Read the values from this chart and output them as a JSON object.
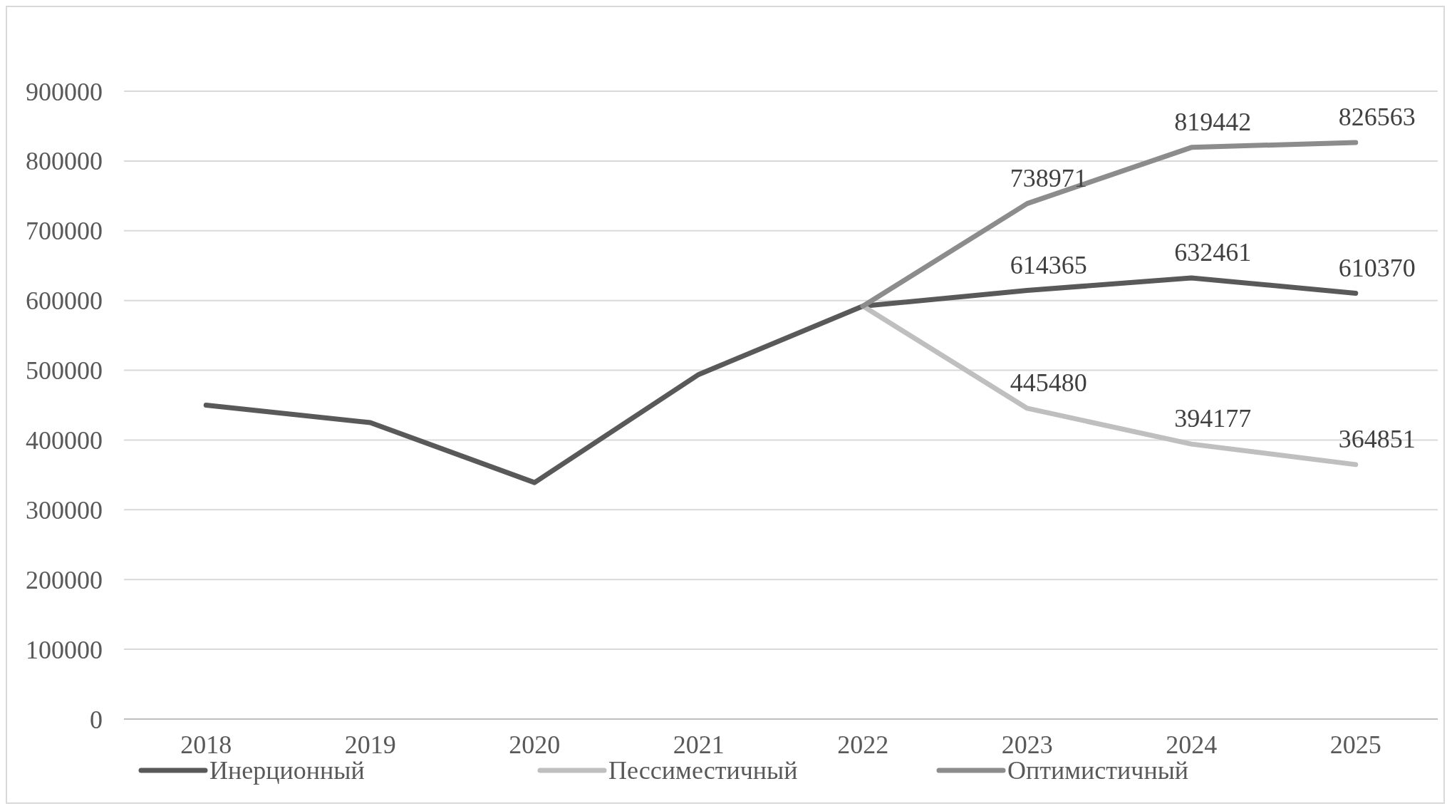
{
  "chart_data": {
    "type": "line",
    "categories": [
      "2018",
      "2019",
      "2020",
      "2021",
      "2022",
      "2023",
      "2024",
      "2025"
    ],
    "series": [
      {
        "name": "Инерционный",
        "color": "#595959",
        "values": [
          450000,
          425000,
          339000,
          494000,
          592000,
          614365,
          632461,
          610370
        ],
        "value_labels": [
          null,
          null,
          null,
          null,
          null,
          "614365",
          "632461",
          "610370"
        ]
      },
      {
        "name": "Пессиместичный",
        "color": "#bfbfbf",
        "values": [
          null,
          null,
          null,
          null,
          592000,
          445480,
          394177,
          364851
        ],
        "value_labels": [
          null,
          null,
          null,
          null,
          null,
          "445480",
          "394177",
          "364851"
        ]
      },
      {
        "name": "Оптимистичный",
        "color": "#8c8c8c",
        "values": [
          null,
          null,
          null,
          null,
          592000,
          738971,
          819442,
          826563
        ],
        "value_labels": [
          null,
          null,
          null,
          null,
          null,
          "738971",
          "819442",
          "826563"
        ]
      }
    ],
    "ylim": [
      0,
      900000
    ],
    "yticks": [
      0,
      100000,
      200000,
      300000,
      400000,
      500000,
      600000,
      700000,
      800000,
      900000
    ],
    "grid": "y",
    "legend": "bottom",
    "marker": "none",
    "line_style": "solid"
  }
}
